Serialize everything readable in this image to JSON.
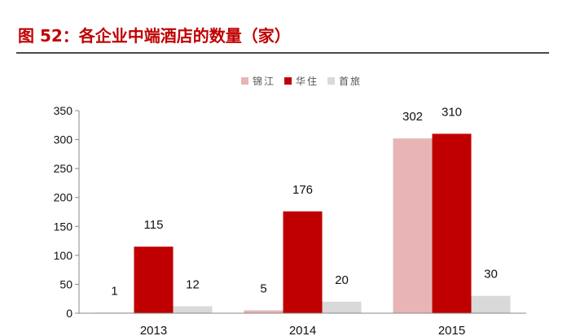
{
  "title": "图 52：各企业中端酒店的数量（家）",
  "colors": {
    "title": "#c00000",
    "rule": "#4a4a4a"
  },
  "chart_data": {
    "type": "bar",
    "categories": [
      "2013",
      "2014",
      "2015"
    ],
    "series": [
      {
        "name": "锦江",
        "values": [
          1,
          5,
          302
        ],
        "color": "#e8b4b5"
      },
      {
        "name": "华住",
        "values": [
          115,
          176,
          310
        ],
        "color": "#c00000"
      },
      {
        "name": "首旅",
        "values": [
          12,
          20,
          30
        ],
        "color": "#d9d9d9"
      }
    ],
    "yticks": [
      0,
      50,
      100,
      150,
      200,
      250,
      300,
      350
    ],
    "ylim": [
      0,
      350
    ],
    "grid": false,
    "legend_position": "top-center",
    "data_labels": true
  }
}
